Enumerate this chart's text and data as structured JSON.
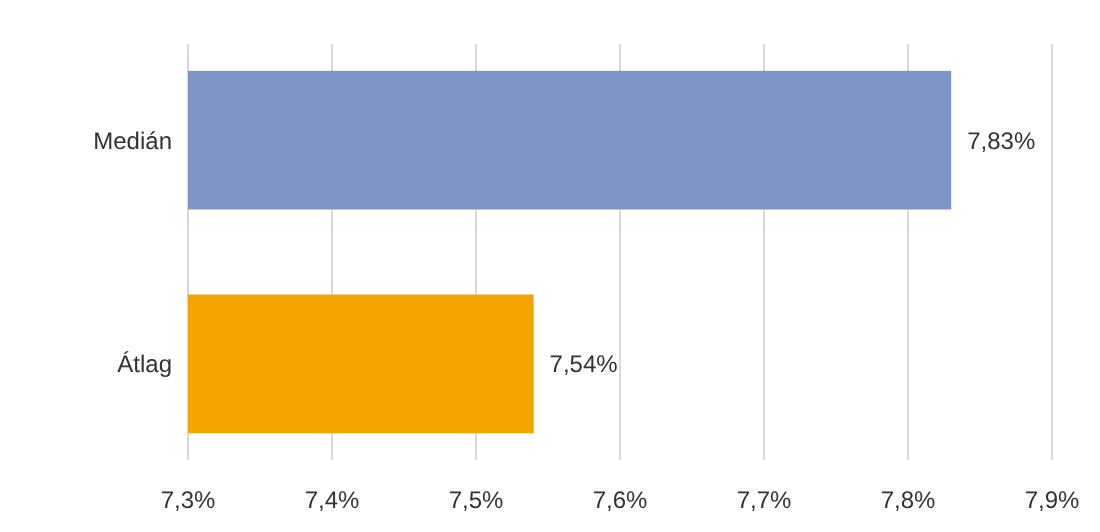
{
  "chart_data": {
    "type": "bar",
    "orientation": "horizontal",
    "categories": [
      "Medián",
      "Átlag"
    ],
    "values": [
      7.83,
      7.54
    ],
    "colors": [
      "#7f95c8",
      "#f4a400"
    ],
    "value_labels": [
      "7,83%",
      "7,54%"
    ],
    "xlim": [
      7.3,
      7.9
    ],
    "xticks": [
      {
        "value": 7.3,
        "label": "7,3%"
      },
      {
        "value": 7.4,
        "label": "7,4%"
      },
      {
        "value": 7.5,
        "label": "7,5%"
      },
      {
        "value": 7.6,
        "label": "7,6%"
      },
      {
        "value": 7.7,
        "label": "7,7%"
      },
      {
        "value": 7.8,
        "label": "7,8%"
      },
      {
        "value": 7.9,
        "label": "7,9%"
      }
    ],
    "grid": "x"
  }
}
